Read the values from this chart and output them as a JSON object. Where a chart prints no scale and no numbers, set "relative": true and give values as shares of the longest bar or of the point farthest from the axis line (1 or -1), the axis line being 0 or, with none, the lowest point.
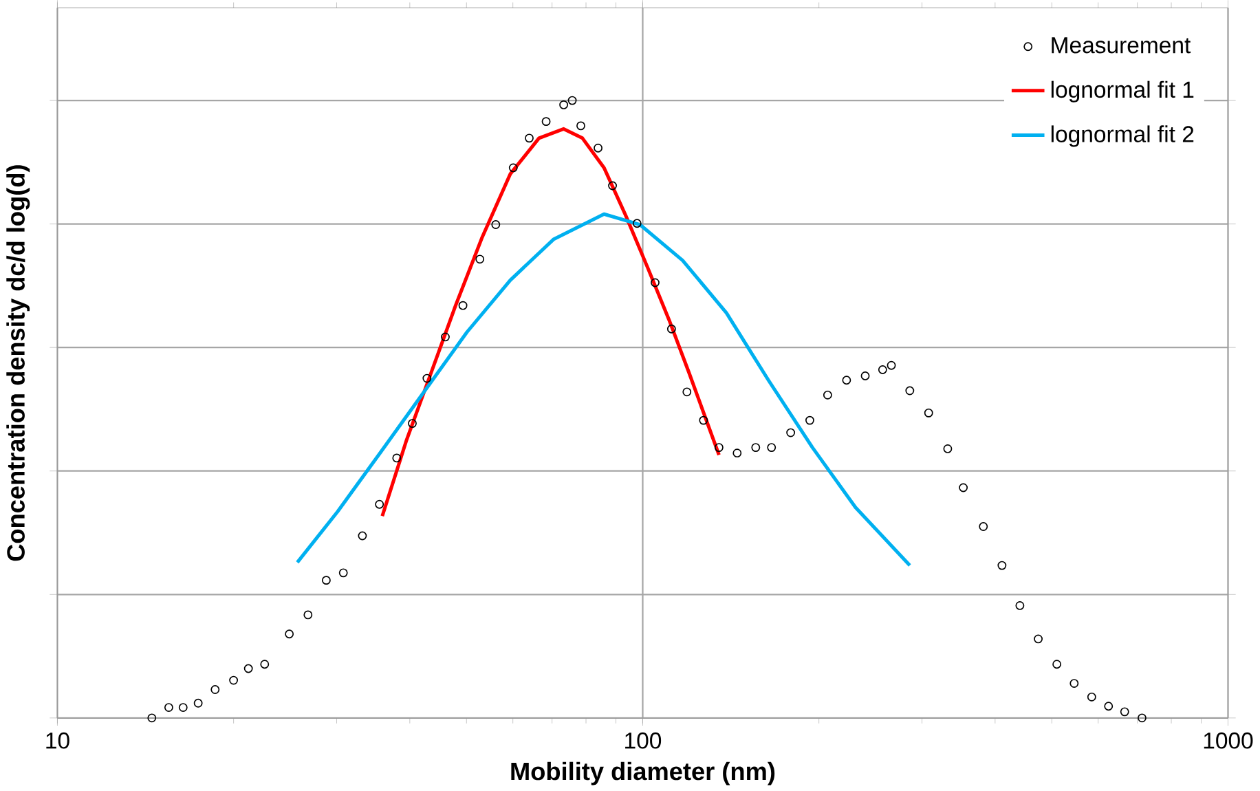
{
  "chart_data": {
    "type": "scatter",
    "relative": true,
    "log": "x",
    "grid": true,
    "legend": "top right",
    "xlabel": "Mobility diameter (nm)",
    "ylabel": "Concentration density  **dc/d log(d)**",
    "xlim": [
      10,
      1000
    ],
    "xticks": [
      10,
      100,
      1000
    ],
    "series": [
      {
        "name": "Measurement",
        "marker": "circle",
        "color": "#000000",
        "x": [
          14.5,
          15.5,
          16.4,
          17.4,
          18.6,
          20.0,
          21.2,
          22.6,
          24.9,
          26.8,
          28.8,
          30.8,
          33.2,
          35.5,
          38.0,
          40.4,
          42.8,
          46.0,
          49.3,
          52.7,
          56.1,
          60.1,
          64.0,
          68.4,
          73.3,
          75.8,
          78.4,
          83.9,
          88.8,
          97.8,
          105,
          112,
          119,
          127,
          135,
          145,
          156,
          166,
          179,
          193,
          207,
          223,
          240,
          257,
          266,
          286,
          308,
          332,
          353,
          382,
          411,
          441,
          474,
          510,
          546,
          585,
          625,
          666,
          713
        ],
        "values": [
          0,
          0.017,
          0.017,
          0.024,
          0.046,
          0.061,
          0.08,
          0.087,
          0.136,
          0.167,
          0.223,
          0.235,
          0.295,
          0.346,
          0.421,
          0.477,
          0.55,
          0.617,
          0.668,
          0.743,
          0.799,
          0.891,
          0.939,
          0.966,
          0.993,
          1.0,
          0.959,
          0.923,
          0.862,
          0.801,
          0.705,
          0.63,
          0.528,
          0.482,
          0.438,
          0.429,
          0.438,
          0.438,
          0.462,
          0.482,
          0.523,
          0.547,
          0.554,
          0.564,
          0.571,
          0.53,
          0.494,
          0.436,
          0.373,
          0.31,
          0.247,
          0.182,
          0.128,
          0.087,
          0.056,
          0.034,
          0.019,
          0.01,
          0
        ]
      },
      {
        "name": "lognormal fit 1",
        "type": "line",
        "marker": "none",
        "line_style": "solid",
        "color": "#ff0000",
        "x": [
          35.9,
          39.5,
          43.5,
          47.9,
          53.1,
          59.4,
          66.5,
          73.3,
          78.9,
          85.9,
          93.5,
          102,
          111,
          120,
          135
        ],
        "values": [
          0.327,
          0.45,
          0.559,
          0.668,
          0.777,
          0.881,
          0.939,
          0.954,
          0.939,
          0.891,
          0.814,
          0.729,
          0.644,
          0.559,
          0.426
        ]
      },
      {
        "name": "lognormal fit 2",
        "type": "line",
        "marker": "none",
        "line_style": "solid",
        "color": "#00b0f0",
        "x": [
          25.7,
          30.1,
          35.7,
          42.3,
          50.1,
          59.4,
          70.4,
          85.9,
          98.9,
          117,
          139,
          164,
          195,
          231,
          286
        ],
        "values": [
          0.252,
          0.334,
          0.431,
          0.528,
          0.625,
          0.709,
          0.775,
          0.816,
          0.799,
          0.741,
          0.656,
          0.547,
          0.438,
          0.341,
          0.247
        ]
      }
    ]
  }
}
